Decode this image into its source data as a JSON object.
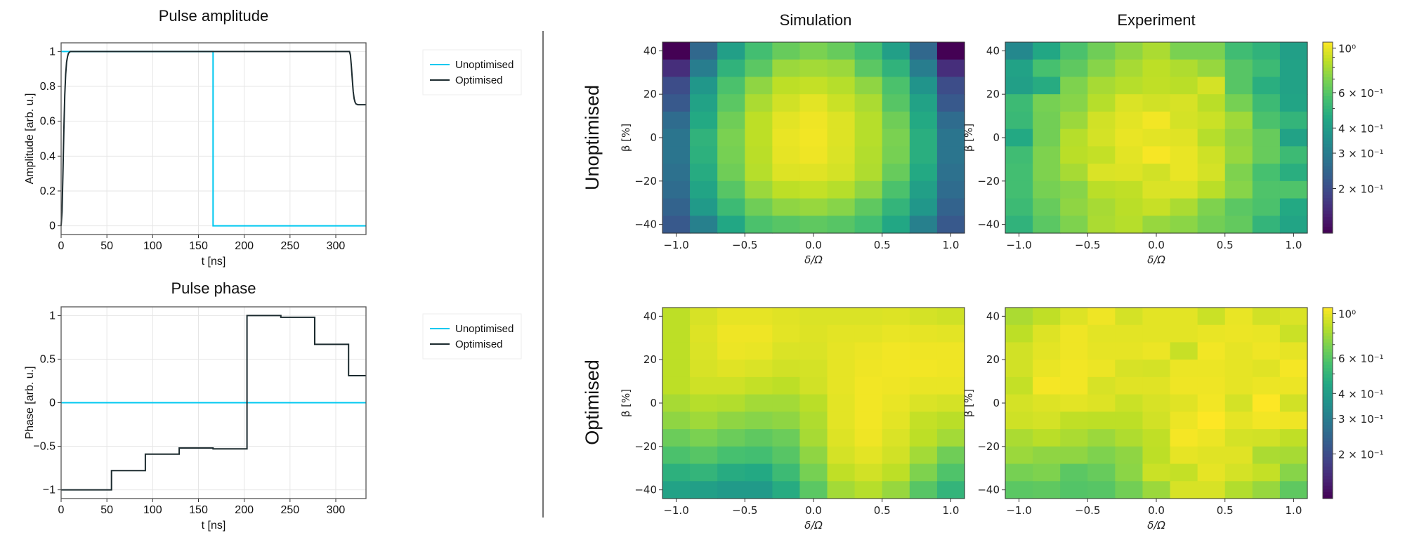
{
  "colors": {
    "unoptimised": "#00c8f0",
    "optimised": "#1b2a2e",
    "grid": "#e6e6e6",
    "divider": "#444444"
  },
  "column_titles": [
    "Simulation",
    "Experiment"
  ],
  "row_labels": [
    "Unoptimised",
    "Optimised"
  ],
  "chart_data": [
    {
      "id": "amplitude",
      "type": "line",
      "title": "Pulse amplitude",
      "xlabel": "t [ns]",
      "ylabel": "Amplitude [arb. u.]",
      "xlim": [
        0,
        333
      ],
      "ylim": [
        -0.05,
        1.05
      ],
      "grid": true,
      "legend_placement": "outside-right-top",
      "xticks": [
        {
          "v": 0,
          "label": "0"
        },
        {
          "v": 50,
          "label": "50"
        },
        {
          "v": 100,
          "label": "100"
        },
        {
          "v": 150,
          "label": "150"
        },
        {
          "v": 200,
          "label": "200"
        },
        {
          "v": 250,
          "label": "250"
        },
        {
          "v": 300,
          "label": "300"
        }
      ],
      "yticks": [
        {
          "v": 0,
          "label": "0"
        },
        {
          "v": 0.2,
          "label": "0.2"
        },
        {
          "v": 0.4,
          "label": "0.4"
        },
        {
          "v": 0.6,
          "label": "0.6"
        },
        {
          "v": 0.8,
          "label": "0.8"
        },
        {
          "v": 1,
          "label": "1"
        }
      ],
      "series": [
        {
          "name": "Unoptimised",
          "color": "#00c8f0",
          "x": [
            0,
            166,
            166,
            333
          ],
          "y": [
            1,
            1,
            0,
            0
          ]
        },
        {
          "name": "Optimised",
          "color": "#1b2a2e",
          "x": [
            0,
            1,
            2,
            3,
            4,
            5,
            6,
            7,
            8,
            10,
            12,
            315,
            316,
            317,
            318,
            319,
            320,
            321,
            322,
            324,
            333
          ],
          "y": [
            0,
            0.08,
            0.3,
            0.55,
            0.75,
            0.87,
            0.94,
            0.97,
            0.99,
            1.0,
            1.0,
            1.0,
            0.98,
            0.92,
            0.84,
            0.77,
            0.73,
            0.71,
            0.7,
            0.695,
            0.695
          ]
        }
      ]
    },
    {
      "id": "phase",
      "type": "line",
      "title": "Pulse phase",
      "xlabel": "t [ns]",
      "ylabel": "Phase [arb. u.]",
      "xlim": [
        0,
        333
      ],
      "ylim": [
        -1.1,
        1.1
      ],
      "grid": true,
      "legend_placement": "outside-right-top",
      "xticks": [
        {
          "v": 0,
          "label": "0"
        },
        {
          "v": 50,
          "label": "50"
        },
        {
          "v": 100,
          "label": "100"
        },
        {
          "v": 150,
          "label": "150"
        },
        {
          "v": 200,
          "label": "200"
        },
        {
          "v": 250,
          "label": "250"
        },
        {
          "v": 300,
          "label": "300"
        }
      ],
      "yticks": [
        {
          "v": -1,
          "label": "−1"
        },
        {
          "v": -0.5,
          "label": "−0.5"
        },
        {
          "v": 0,
          "label": "0"
        },
        {
          "v": 0.5,
          "label": "0.5"
        },
        {
          "v": 1,
          "label": "1"
        }
      ],
      "series": [
        {
          "name": "Unoptimised",
          "color": "#00c8f0",
          "x": [
            0,
            333
          ],
          "y": [
            0,
            0
          ]
        },
        {
          "name": "Optimised",
          "color": "#1b2a2e",
          "x": [
            0,
            55,
            55,
            92,
            92,
            129,
            129,
            166,
            166,
            203,
            203,
            240,
            240,
            277,
            277,
            314,
            314,
            333
          ],
          "y": [
            -1,
            -1,
            -0.78,
            -0.78,
            -0.59,
            -0.59,
            -0.52,
            -0.52,
            -0.53,
            -0.53,
            1.0,
            1.0,
            0.98,
            0.98,
            0.67,
            0.67,
            0.31,
            0.31
          ]
        }
      ]
    },
    {
      "id": "heatmaps",
      "type": "heatmap",
      "colormap": "viridis",
      "color_scale": "log",
      "vlim": [
        0.12,
        1.07
      ],
      "xlabel": "δ/Ω",
      "ylabel": "β [%]",
      "x": [
        -1.0,
        -0.8,
        -0.6,
        -0.4,
        -0.2,
        0.0,
        0.2,
        0.4,
        0.6,
        0.8,
        1.0
      ],
      "y": [
        40,
        32,
        24,
        16,
        8,
        0,
        -8,
        -16,
        -24,
        -32,
        -40
      ],
      "xlim": [
        -1.1,
        1.1
      ],
      "ylim": [
        -44,
        44
      ],
      "xticks": [
        {
          "v": -1.0,
          "label": "−1.0"
        },
        {
          "v": -0.5,
          "label": "−0.5"
        },
        {
          "v": 0.0,
          "label": "0.0"
        },
        {
          "v": 0.5,
          "label": "0.5"
        },
        {
          "v": 1.0,
          "label": "1.0"
        }
      ],
      "yticks": [
        {
          "v": 40,
          "label": "40"
        },
        {
          "v": 20,
          "label": "20"
        },
        {
          "v": 0,
          "label": "0"
        },
        {
          "v": -20,
          "label": "−20"
        },
        {
          "v": -40,
          "label": "−40"
        }
      ],
      "colorbar_ticks": [
        {
          "v": 1.0,
          "label": "10⁰"
        },
        {
          "v": 0.6,
          "label": "6 × 10⁻¹"
        },
        {
          "v": 0.4,
          "label": "4 × 10⁻¹"
        },
        {
          "v": 0.3,
          "label": "3 × 10⁻¹"
        },
        {
          "v": 0.2,
          "label": "2 × 10⁻¹"
        }
      ],
      "colorbar_minor_ticks": [
        0.5,
        0.7,
        0.8,
        0.9
      ],
      "panels": [
        {
          "row": "Unoptimised",
          "column": "Simulation",
          "values": [
            [
              0.12,
              0.25,
              0.41,
              0.55,
              0.64,
              0.69,
              0.64,
              0.55,
              0.41,
              0.25,
              0.115
            ],
            [
              0.16,
              0.3,
              0.49,
              0.61,
              0.77,
              0.79,
              0.77,
              0.61,
              0.49,
              0.3,
              0.16
            ],
            [
              0.2,
              0.38,
              0.57,
              0.74,
              0.86,
              0.88,
              0.84,
              0.74,
              0.57,
              0.37,
              0.2
            ],
            [
              0.22,
              0.42,
              0.61,
              0.81,
              0.92,
              0.98,
              0.9,
              0.81,
              0.6,
              0.42,
              0.22
            ],
            [
              0.26,
              0.45,
              0.66,
              0.86,
              0.98,
              1.02,
              0.96,
              0.84,
              0.66,
              0.45,
              0.26
            ],
            [
              0.28,
              0.49,
              0.69,
              0.86,
              1.0,
              1.03,
              0.96,
              0.84,
              0.69,
              0.47,
              0.28
            ],
            [
              0.28,
              0.48,
              0.68,
              0.85,
              0.99,
              1.02,
              0.95,
              0.83,
              0.68,
              0.47,
              0.28
            ],
            [
              0.27,
              0.46,
              0.66,
              0.84,
              0.96,
              0.97,
              0.93,
              0.82,
              0.64,
              0.45,
              0.27
            ],
            [
              0.26,
              0.43,
              0.6,
              0.77,
              0.86,
              0.88,
              0.84,
              0.74,
              0.57,
              0.41,
              0.26
            ],
            [
              0.24,
              0.39,
              0.53,
              0.66,
              0.74,
              0.76,
              0.72,
              0.62,
              0.5,
              0.38,
              0.24
            ],
            [
              0.22,
              0.31,
              0.44,
              0.57,
              0.6,
              0.62,
              0.6,
              0.55,
              0.44,
              0.31,
              0.22
            ]
          ]
        },
        {
          "row": "Unoptimised",
          "column": "Experiment",
          "values": [
            [
              0.33,
              0.44,
              0.57,
              0.66,
              0.74,
              0.81,
              0.69,
              0.69,
              0.54,
              0.49,
              0.41
            ],
            [
              0.42,
              0.56,
              0.62,
              0.72,
              0.8,
              0.86,
              0.82,
              0.76,
              0.6,
              0.53,
              0.42
            ],
            [
              0.41,
              0.46,
              0.7,
              0.8,
              0.84,
              0.87,
              0.85,
              0.93,
              0.6,
              0.47,
              0.42
            ],
            [
              0.53,
              0.68,
              0.72,
              0.84,
              0.95,
              0.92,
              0.94,
              0.85,
              0.68,
              0.53,
              0.43
            ],
            [
              0.52,
              0.67,
              0.77,
              0.92,
              0.98,
              1.03,
              0.93,
              0.9,
              0.78,
              0.57,
              0.5
            ],
            [
              0.45,
              0.67,
              0.84,
              0.93,
              1.0,
              0.98,
              0.97,
              0.84,
              0.74,
              0.64,
              0.42
            ],
            [
              0.54,
              0.7,
              0.85,
              0.88,
              0.98,
              1.05,
              1.0,
              0.91,
              0.76,
              0.64,
              0.53
            ],
            [
              0.55,
              0.7,
              0.8,
              0.95,
              0.96,
              0.92,
              1.0,
              0.93,
              0.7,
              0.56,
              0.47
            ],
            [
              0.55,
              0.68,
              0.72,
              0.85,
              0.87,
              0.95,
              0.95,
              0.85,
              0.72,
              0.58,
              0.58
            ],
            [
              0.53,
              0.64,
              0.74,
              0.8,
              0.85,
              0.89,
              0.81,
              0.7,
              0.61,
              0.57,
              0.45
            ],
            [
              0.49,
              0.61,
              0.7,
              0.81,
              0.84,
              0.76,
              0.73,
              0.67,
              0.63,
              0.5,
              0.43
            ]
          ]
        },
        {
          "row": "Optimised",
          "column": "Simulation",
          "values": [
            [
              0.86,
              0.94,
              0.99,
              0.99,
              0.97,
              0.95,
              0.95,
              0.95,
              0.96,
              0.93,
              0.91
            ],
            [
              0.86,
              0.96,
              1.02,
              1.02,
              0.98,
              0.96,
              0.98,
              0.98,
              1.0,
              0.99,
              0.98
            ],
            [
              0.86,
              0.95,
              1.01,
              1.0,
              0.95,
              0.95,
              0.99,
              1.01,
              1.03,
              1.02,
              1.02
            ],
            [
              0.86,
              0.94,
              0.97,
              0.95,
              0.92,
              0.93,
              0.99,
              1.02,
              1.03,
              1.03,
              1.02
            ],
            [
              0.86,
              0.91,
              0.91,
              0.88,
              0.86,
              0.92,
              0.99,
              1.03,
              1.02,
              1.0,
              1.0
            ],
            [
              0.8,
              0.84,
              0.83,
              0.79,
              0.79,
              0.85,
              0.98,
              1.03,
              1.0,
              0.95,
              0.93
            ],
            [
              0.74,
              0.78,
              0.74,
              0.72,
              0.74,
              0.82,
              0.98,
              1.03,
              0.98,
              0.88,
              0.85
            ],
            [
              0.65,
              0.69,
              0.65,
              0.62,
              0.65,
              0.8,
              0.96,
              1.02,
              0.95,
              0.86,
              0.79
            ],
            [
              0.57,
              0.6,
              0.56,
              0.55,
              0.6,
              0.74,
              0.93,
              0.98,
              0.92,
              0.79,
              0.66
            ],
            [
              0.48,
              0.5,
              0.46,
              0.45,
              0.53,
              0.68,
              0.87,
              0.92,
              0.86,
              0.7,
              0.58
            ],
            [
              0.42,
              0.41,
              0.39,
              0.39,
              0.46,
              0.61,
              0.79,
              0.84,
              0.76,
              0.6,
              0.5
            ]
          ]
        },
        {
          "row": "Optimised",
          "column": "Experiment",
          "values": [
            [
              0.81,
              0.87,
              0.96,
              1.02,
              0.93,
              0.98,
              0.98,
              0.9,
              1.0,
              0.92,
              0.95
            ],
            [
              0.86,
              0.96,
              1.02,
              0.98,
              0.98,
              0.98,
              0.98,
              1.0,
              1.01,
              1.0,
              0.9
            ],
            [
              0.92,
              0.98,
              1.02,
              0.99,
              0.99,
              1.01,
              0.89,
              1.03,
              0.99,
              1.02,
              0.99
            ],
            [
              0.92,
              1.0,
              1.03,
              1.01,
              0.94,
              0.93,
              1.01,
              1.01,
              0.99,
              0.97,
              1.04
            ],
            [
              0.88,
              1.04,
              1.03,
              0.94,
              0.97,
              0.97,
              1.02,
              1.02,
              0.99,
              1.01,
              1.01
            ],
            [
              0.93,
              0.96,
              0.98,
              0.96,
              0.9,
              0.94,
              0.97,
              1.03,
              0.93,
              1.07,
              0.92
            ],
            [
              0.91,
              0.93,
              0.87,
              0.86,
              0.86,
              0.92,
              1.01,
              1.07,
              0.99,
              1.03,
              1.02
            ],
            [
              0.81,
              0.85,
              0.81,
              0.77,
              0.82,
              0.87,
              1.04,
              1.01,
              0.93,
              0.92,
              0.87
            ],
            [
              0.77,
              0.74,
              0.74,
              0.7,
              0.74,
              0.86,
              0.99,
              0.97,
              0.97,
              0.81,
              0.8
            ],
            [
              0.68,
              0.7,
              0.61,
              0.64,
              0.73,
              0.9,
              0.88,
              0.99,
              0.93,
              0.88,
              0.72
            ],
            [
              0.61,
              0.62,
              0.59,
              0.6,
              0.67,
              0.77,
              0.94,
              0.94,
              0.83,
              0.76,
              0.62
            ]
          ]
        }
      ]
    }
  ]
}
